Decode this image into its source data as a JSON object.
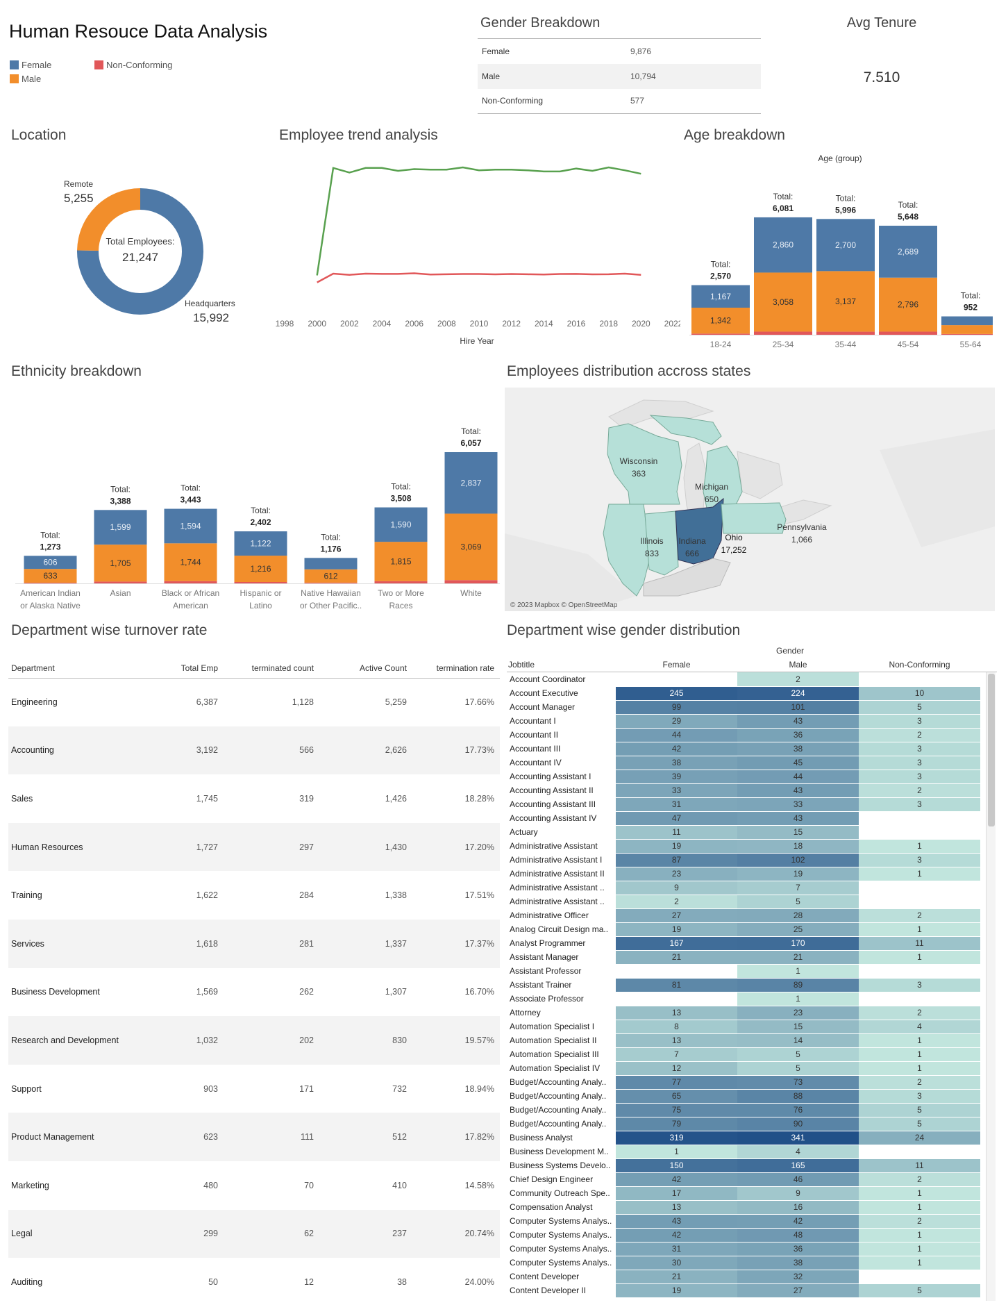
{
  "title": "Human Resouce Data Analysis",
  "legend": [
    {
      "label": "Female",
      "color": "#4e79a7"
    },
    {
      "label": "Male",
      "color": "#f28e2b"
    },
    {
      "label": "Non-Conforming",
      "color": "#e15759"
    }
  ],
  "gender_breakdown": {
    "title": "Gender Breakdown",
    "rows": [
      {
        "label": "Female",
        "value": "9,876"
      },
      {
        "label": "Male",
        "value": "10,794"
      },
      {
        "label": "Non-Conforming",
        "value": "577"
      }
    ]
  },
  "avg_tenure": {
    "title": "Avg Tenure",
    "value": "7.510"
  },
  "location": {
    "title": "Location",
    "center_label": "Total Employees:",
    "center_value": "21,247",
    "remote_label": "Remote",
    "remote_value": "5,255",
    "hq_label": "Headquarters",
    "hq_value": "15,992"
  },
  "trend": {
    "title": "Employee trend analysis",
    "xlabel": "Hire Year"
  },
  "age": {
    "title": "Age breakdown",
    "group_label": "Age (group)"
  },
  "ethnicity": {
    "title": "Ethnicity breakdown"
  },
  "map": {
    "title": "Employees distribution accross states",
    "credit": "© 2023 Mapbox © OpenStreetMap",
    "states": [
      {
        "name": "Wisconsin",
        "value": "363"
      },
      {
        "name": "Michigan",
        "value": "650"
      },
      {
        "name": "Illinois",
        "value": "833"
      },
      {
        "name": "Indiana",
        "value": "666"
      },
      {
        "name": "Ohio",
        "value": "17,252"
      },
      {
        "name": "Pennsylvania",
        "value": "1,066"
      }
    ]
  },
  "turnover": {
    "title": "Department wise turnover rate",
    "headers": [
      "Department",
      "Total Emp",
      "terminated count",
      "Active Count",
      "termination rate"
    ],
    "rows": [
      [
        "Engineering",
        "6,387",
        "1,128",
        "5,259",
        "17.66%"
      ],
      [
        "Accounting",
        "3,192",
        "566",
        "2,626",
        "17.73%"
      ],
      [
        "Sales",
        "1,745",
        "319",
        "1,426",
        "18.28%"
      ],
      [
        "Human Resources",
        "1,727",
        "297",
        "1,430",
        "17.20%"
      ],
      [
        "Training",
        "1,622",
        "284",
        "1,338",
        "17.51%"
      ],
      [
        "Services",
        "1,618",
        "281",
        "1,337",
        "17.37%"
      ],
      [
        "Business Development",
        "1,569",
        "262",
        "1,307",
        "16.70%"
      ],
      [
        "Research and Development",
        "1,032",
        "202",
        "830",
        "19.57%"
      ],
      [
        "Support",
        "903",
        "171",
        "732",
        "18.94%"
      ],
      [
        "Product Management",
        "623",
        "111",
        "512",
        "17.82%"
      ],
      [
        "Marketing",
        "480",
        "70",
        "410",
        "14.58%"
      ],
      [
        "Legal",
        "299",
        "62",
        "237",
        "20.74%"
      ],
      [
        "Auditing",
        "50",
        "12",
        "38",
        "24.00%"
      ]
    ]
  },
  "dept_gender": {
    "title": "Department wise gender distribution",
    "group_header": "Gender",
    "headers": [
      "Jobtitle",
      "Female",
      "Male",
      "Non-Conforming"
    ],
    "rows": [
      [
        "Account Coordinator",
        "",
        "2",
        ""
      ],
      [
        "Account Executive",
        "245",
        "224",
        "10"
      ],
      [
        "Account Manager",
        "99",
        "101",
        "5"
      ],
      [
        "Accountant I",
        "29",
        "43",
        "3"
      ],
      [
        "Accountant II",
        "44",
        "36",
        "2"
      ],
      [
        "Accountant III",
        "42",
        "38",
        "3"
      ],
      [
        "Accountant IV",
        "38",
        "45",
        "3"
      ],
      [
        "Accounting Assistant I",
        "39",
        "44",
        "3"
      ],
      [
        "Accounting Assistant II",
        "33",
        "43",
        "2"
      ],
      [
        "Accounting Assistant III",
        "31",
        "33",
        "3"
      ],
      [
        "Accounting Assistant IV",
        "47",
        "43",
        ""
      ],
      [
        "Actuary",
        "11",
        "15",
        ""
      ],
      [
        "Administrative Assistant",
        "19",
        "18",
        "1"
      ],
      [
        "Administrative Assistant I",
        "87",
        "102",
        "3"
      ],
      [
        "Administrative Assistant II",
        "23",
        "19",
        "1"
      ],
      [
        "Administrative Assistant ..",
        "9",
        "7",
        ""
      ],
      [
        "Administrative Assistant ..",
        "2",
        "5",
        ""
      ],
      [
        "Administrative Officer",
        "27",
        "28",
        "2"
      ],
      [
        "Analog Circuit Design ma..",
        "19",
        "25",
        "1"
      ],
      [
        "Analyst Programmer",
        "167",
        "170",
        "11"
      ],
      [
        "Assistant Manager",
        "21",
        "21",
        "1"
      ],
      [
        "Assistant Professor",
        "",
        "1",
        ""
      ],
      [
        "Assistant Trainer",
        "81",
        "89",
        "3"
      ],
      [
        "Associate Professor",
        "",
        "1",
        ""
      ],
      [
        "Attorney",
        "13",
        "23",
        "2"
      ],
      [
        "Automation Specialist I",
        "8",
        "15",
        "4"
      ],
      [
        "Automation Specialist II",
        "13",
        "14",
        "1"
      ],
      [
        "Automation Specialist III",
        "7",
        "5",
        "1"
      ],
      [
        "Automation Specialist IV",
        "12",
        "5",
        "1"
      ],
      [
        "Budget/Accounting Analy..",
        "77",
        "73",
        "2"
      ],
      [
        "Budget/Accounting Analy..",
        "65",
        "88",
        "3"
      ],
      [
        "Budget/Accounting Analy..",
        "75",
        "76",
        "5"
      ],
      [
        "Budget/Accounting Analy..",
        "79",
        "90",
        "5"
      ],
      [
        "Business Analyst",
        "319",
        "341",
        "24"
      ],
      [
        "Business Development M..",
        "1",
        "4",
        ""
      ],
      [
        "Business Systems Develo..",
        "150",
        "165",
        "11"
      ],
      [
        "Chief Design Engineer",
        "42",
        "46",
        "2"
      ],
      [
        "Community Outreach Spe..",
        "17",
        "9",
        "1"
      ],
      [
        "Compensation Analyst",
        "13",
        "16",
        "1"
      ],
      [
        "Computer Systems Analys..",
        "43",
        "42",
        "2"
      ],
      [
        "Computer Systems Analys..",
        "42",
        "48",
        "1"
      ],
      [
        "Computer Systems Analys..",
        "31",
        "36",
        "1"
      ],
      [
        "Computer Systems Analys..",
        "30",
        "38",
        "1"
      ],
      [
        "Content Developer",
        "21",
        "32",
        ""
      ],
      [
        "Content Developer II",
        "19",
        "27",
        "5"
      ]
    ]
  },
  "chart_data": [
    {
      "type": "pie",
      "title": "Location",
      "categories": [
        "Headquarters",
        "Remote"
      ],
      "values": [
        15992,
        5255
      ],
      "colors": [
        "#4e79a7",
        "#f28e2b"
      ]
    },
    {
      "type": "line",
      "title": "Employee trend analysis",
      "xlabel": "Hire Year",
      "x_ticks": [
        "1998",
        "2000",
        "2002",
        "2004",
        "2006",
        "2008",
        "2010",
        "2012",
        "2014",
        "2016",
        "2018",
        "2020",
        "2022"
      ],
      "x": [
        2000,
        2001,
        2002,
        2003,
        2004,
        2005,
        2006,
        2007,
        2008,
        2009,
        2010,
        2011,
        2012,
        2013,
        2014,
        2015,
        2016,
        2017,
        2018,
        2019,
        2020
      ],
      "xlim": [
        1998,
        2022
      ],
      "ylim": [
        0,
        1100
      ],
      "series": [
        {
          "color": "#59a14f",
          "values": [
            80,
            1000,
            960,
            1000,
            1000,
            975,
            990,
            985,
            985,
            1005,
            980,
            985,
            985,
            980,
            970,
            970,
            995,
            975,
            1005,
            980,
            950
          ]
        },
        {
          "color": "#e15759",
          "values": [
            20,
            95,
            85,
            95,
            93,
            93,
            98,
            88,
            90,
            92,
            92,
            89,
            92,
            90,
            88,
            92,
            93,
            89,
            90,
            95,
            85
          ]
        }
      ]
    },
    {
      "type": "bar",
      "stacked": true,
      "title": "Age breakdown",
      "xlabel": "Age (group)",
      "categories": [
        "18-24",
        "25-34",
        "35-44",
        "45-54",
        "55-64"
      ],
      "totals": [
        "2,570",
        "6,081",
        "5,996",
        "5,648",
        "952"
      ],
      "series": [
        {
          "name": "Female",
          "values": [
            1167,
            2860,
            2700,
            2689,
            452
          ]
        },
        {
          "name": "Male",
          "values": [
            1342,
            3058,
            3137,
            2796,
            460
          ]
        },
        {
          "name": "Non-Conforming",
          "values": [
            61,
            163,
            159,
            163,
            40
          ]
        }
      ]
    },
    {
      "type": "bar",
      "stacked": true,
      "title": "Ethnicity breakdown",
      "categories": [
        [
          "American Indian",
          "or Alaska Native"
        ],
        [
          "Asian"
        ],
        [
          "Black or African",
          "American"
        ],
        [
          "Hispanic or",
          "Latino"
        ],
        [
          "Native Hawaiian",
          "or Other Pacific.."
        ],
        [
          "Two or More",
          "Races"
        ],
        [
          "White"
        ]
      ],
      "totals": [
        "1,273",
        "3,388",
        "3,443",
        "2,402",
        "1,176",
        "3,508",
        "6,057"
      ],
      "series": [
        {
          "name": "Female",
          "values": [
            606,
            1599,
            1594,
            1122,
            528,
            1590,
            2837
          ]
        },
        {
          "name": "Male",
          "values": [
            633,
            1705,
            1744,
            1216,
            612,
            1815,
            3069
          ]
        },
        {
          "name": "Non-Conforming",
          "values": [
            34,
            84,
            105,
            64,
            36,
            103,
            151
          ]
        }
      ]
    }
  ]
}
